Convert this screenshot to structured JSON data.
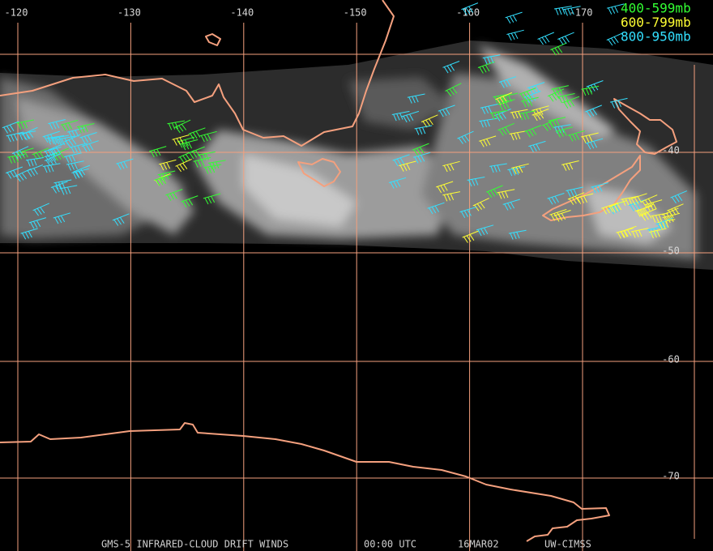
{
  "map": {
    "lon_ticks": [
      -120,
      -130,
      -140,
      -150,
      -160,
      -170
    ],
    "lat_ticks": [
      -40,
      -50,
      -60,
      -70
    ],
    "legend": [
      {
        "label": "400-599mb",
        "color": "#33ff33"
      },
      {
        "label": "600-799mb",
        "color": "#ffff33"
      },
      {
        "label": "800-950mb",
        "color": "#33e0ff"
      }
    ],
    "footer": [
      "GMS-5 INFRARED-CLOUD DRIFT WINDS",
      "00:00 UTC",
      "16MAR02",
      "UW-CIMSS"
    ]
  }
}
